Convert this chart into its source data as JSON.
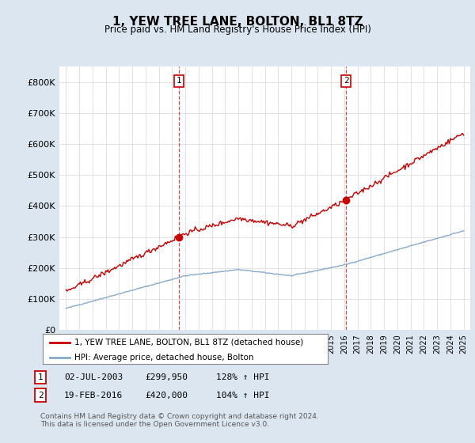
{
  "title": "1, YEW TREE LANE, BOLTON, BL1 8TZ",
  "subtitle": "Price paid vs. HM Land Registry's House Price Index (HPI)",
  "background_color": "#dce6f1",
  "plot_bg_color": "#ffffff",
  "ylim": [
    0,
    850000
  ],
  "yticks": [
    0,
    100000,
    200000,
    300000,
    400000,
    500000,
    600000,
    700000,
    800000
  ],
  "ytick_labels": [
    "£0",
    "£100K",
    "£200K",
    "£300K",
    "£400K",
    "£500K",
    "£600K",
    "£700K",
    "£800K"
  ],
  "sale1": {
    "date_num": 2003.5,
    "price": 299950,
    "label": "1",
    "date_str": "02-JUL-2003",
    "hpi_pct": "128%"
  },
  "sale2": {
    "date_num": 2016.13,
    "price": 420000,
    "label": "2",
    "date_str": "19-FEB-2016",
    "hpi_pct": "104%"
  },
  "legend_line1": "1, YEW TREE LANE, BOLTON, BL1 8TZ (detached house)",
  "legend_line2": "HPI: Average price, detached house, Bolton",
  "footer": "Contains HM Land Registry data © Crown copyright and database right 2024.\nThis data is licensed under the Open Government Licence v3.0.",
  "red_line_color": "#cc0000",
  "blue_line_color": "#88aacc",
  "vline_color": "#cc0000",
  "grid_color": "#dddddd",
  "xlim_start": 1994.5,
  "xlim_end": 2025.5
}
